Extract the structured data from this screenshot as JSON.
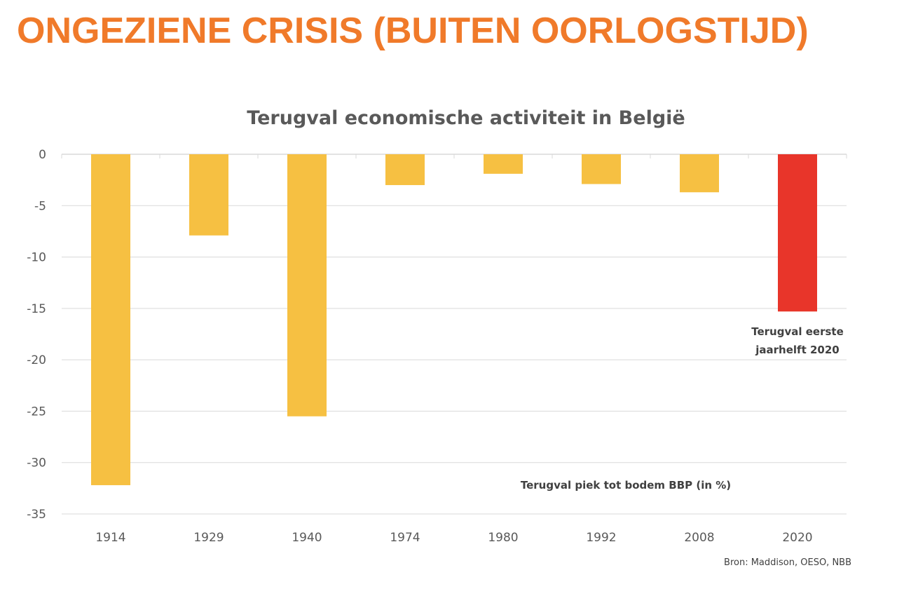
{
  "headline": "ONGEZIENE CRISIS (BUITEN OORLOGSTIJD)",
  "colors": {
    "headline": "#f07a2a",
    "bar": "#f6c042",
    "highlight_bar": "#e8352a",
    "grid": "#d9d9d9"
  },
  "chart_data": {
    "type": "bar",
    "title": "Terugval economische activiteit in België",
    "categories": [
      "1914",
      "1929",
      "1940",
      "1974",
      "1980",
      "1992",
      "2008",
      "2020"
    ],
    "values": [
      -32.2,
      -7.9,
      -25.5,
      -3.0,
      -1.9,
      -2.9,
      -3.7,
      -15.3
    ],
    "highlight_index": 7,
    "ylim": [
      -35,
      0
    ],
    "yticks": [
      0,
      -5,
      -10,
      -15,
      -20,
      -25,
      -30,
      -35
    ],
    "grid": true,
    "annotations": {
      "highlight_label_line1": "Terugval eerste",
      "highlight_label_line2": "jaarhelft 2020",
      "series_label": "Terugval piek tot bodem BBP (in %)"
    },
    "source": "Bron: Maddison, OESO, NBB"
  }
}
